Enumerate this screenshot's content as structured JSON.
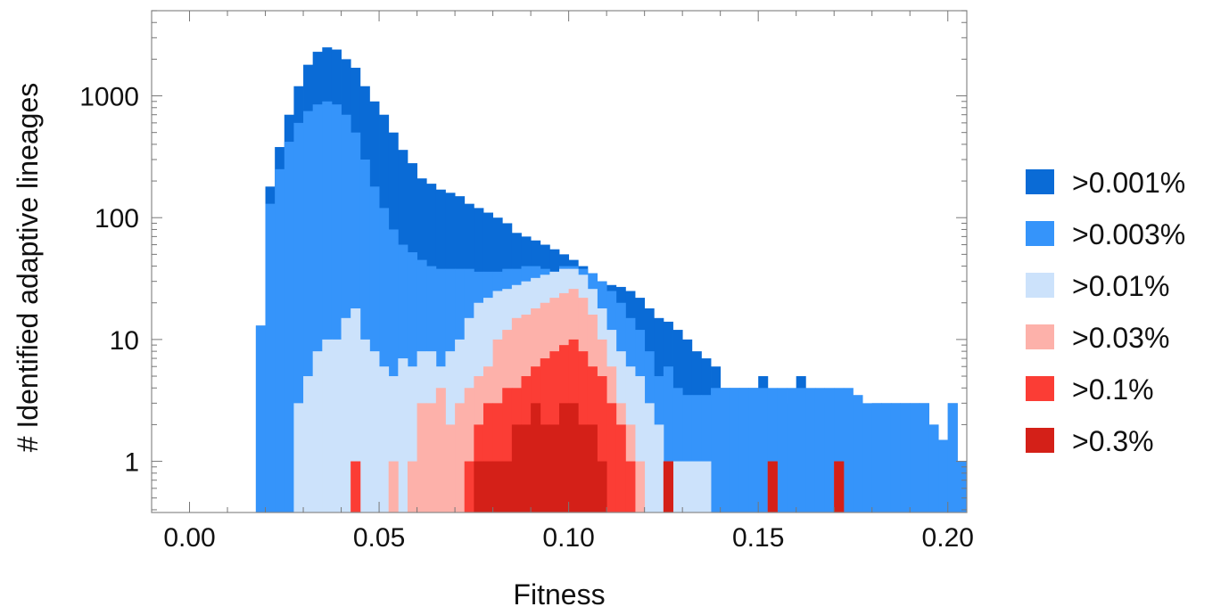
{
  "chart_data": {
    "type": "bar",
    "title": "",
    "xlabel": "Fitness",
    "ylabel": "# Identified adaptive lineages",
    "x_scale": "linear",
    "y_scale": "log",
    "xlim": [
      -0.01,
      0.205
    ],
    "ylim": [
      0.38,
      5000
    ],
    "bin_width": 0.0025,
    "xticks": [
      0.0,
      0.05,
      0.1,
      0.15,
      0.2
    ],
    "xtick_labels": [
      "0.00",
      "0.05",
      "0.10",
      "0.15",
      "0.20"
    ],
    "yticks": [
      1,
      10,
      100,
      1000
    ],
    "ytick_labels": [
      "1",
      "10",
      "100",
      "1000"
    ],
    "grid": false,
    "legend_position": "right",
    "bin_starts": [
      0.0175,
      0.02,
      0.0225,
      0.025,
      0.0275,
      0.03,
      0.0325,
      0.035,
      0.0375,
      0.04,
      0.0425,
      0.045,
      0.0475,
      0.05,
      0.0525,
      0.055,
      0.0575,
      0.06,
      0.0625,
      0.065,
      0.0675,
      0.07,
      0.0725,
      0.075,
      0.0775,
      0.08,
      0.0825,
      0.085,
      0.0875,
      0.09,
      0.0925,
      0.095,
      0.0975,
      0.1,
      0.1025,
      0.105,
      0.1075,
      0.11,
      0.1125,
      0.115,
      0.1175,
      0.12,
      0.1225,
      0.125,
      0.1275,
      0.13,
      0.1325,
      0.135,
      0.1375,
      0.14,
      0.1425,
      0.145,
      0.1475,
      0.15,
      0.1525,
      0.155,
      0.1575,
      0.16,
      0.1625,
      0.165,
      0.1675,
      0.17,
      0.1725,
      0.175,
      0.1775,
      0.18,
      0.1825,
      0.185,
      0.1875,
      0.19,
      0.1925,
      0.195,
      0.1975,
      0.2,
      0.2025
    ],
    "series": [
      {
        "name": ">0.001%",
        "color": "#0a6bd6",
        "values": [
          13,
          180,
          380,
          700,
          1200,
          1800,
          2300,
          2500,
          2400,
          2000,
          1700,
          1200,
          900,
          700,
          500,
          360,
          280,
          210,
          190,
          170,
          160,
          150,
          130,
          120,
          110,
          100,
          90,
          75,
          70,
          65,
          60,
          55,
          50,
          45,
          40,
          35,
          30,
          28,
          27,
          25,
          22,
          18,
          15,
          14,
          12,
          10,
          8,
          7,
          6,
          4,
          4,
          4,
          4,
          5,
          3,
          3,
          3,
          5,
          3,
          3,
          3,
          3,
          3,
          2,
          1.2,
          3,
          3,
          3,
          3,
          3,
          3,
          2,
          1.5,
          3,
          1
        ]
      },
      {
        "name": ">0.003%",
        "color": "#3594fa",
        "values": [
          13,
          130,
          250,
          420,
          600,
          750,
          850,
          900,
          850,
          700,
          500,
          300,
          180,
          120,
          80,
          60,
          52,
          45,
          40,
          38,
          38,
          38,
          38,
          36,
          36,
          36,
          38,
          38,
          40,
          40,
          38,
          36,
          40,
          40,
          38,
          35,
          30,
          25,
          20,
          15,
          12,
          8,
          5,
          6,
          4,
          3.5,
          3.5,
          3.5,
          4,
          4,
          4,
          4,
          4,
          4,
          4,
          4,
          4,
          4,
          4,
          4,
          4,
          4,
          4,
          3.5,
          3,
          3,
          3,
          3,
          3,
          3,
          3,
          2,
          1.5,
          3,
          1
        ]
      },
      {
        "name": ">0.01%",
        "color": "#cce2fb",
        "values": [
          0,
          0,
          0,
          0,
          3,
          5,
          8,
          10,
          10,
          15,
          18,
          10,
          8,
          6,
          5,
          7,
          6,
          8,
          8,
          6,
          8,
          10,
          15,
          20,
          22,
          25,
          26,
          28,
          30,
          32,
          34,
          36,
          38,
          38,
          34,
          26,
          18,
          12,
          8,
          6,
          5,
          3,
          2,
          1,
          1,
          1,
          1,
          1,
          0,
          0,
          0,
          0,
          0,
          0,
          0,
          0,
          0,
          0,
          0,
          0,
          0,
          0,
          0,
          0,
          0,
          0,
          0,
          0,
          0,
          0,
          0,
          0,
          0,
          0,
          0
        ]
      },
      {
        "name": ">0.03%",
        "color": "#fdb1aa",
        "values": [
          0,
          0,
          0,
          0,
          0,
          0,
          0,
          0,
          0,
          0,
          1,
          0,
          0,
          0,
          1,
          0,
          1,
          3,
          3,
          4,
          2,
          3,
          4,
          5,
          6,
          10,
          12,
          15,
          16,
          18,
          20,
          22,
          24,
          26,
          22,
          16,
          10,
          6,
          3,
          2,
          1,
          0,
          0,
          1,
          0,
          0,
          0,
          0,
          0,
          0,
          0,
          0,
          0,
          0,
          0,
          0,
          0,
          0,
          0,
          0,
          0,
          0,
          0,
          0,
          0,
          0,
          0,
          0,
          0,
          0,
          0,
          0,
          0,
          0,
          0
        ]
      },
      {
        "name": ">0.1%",
        "color": "#fb3d35",
        "values": [
          0,
          0,
          0,
          0,
          0,
          0,
          0,
          0,
          0,
          0,
          1,
          0,
          0,
          0,
          0,
          0,
          0,
          0,
          0,
          0,
          0,
          0,
          1,
          2,
          3,
          3,
          4,
          4,
          5,
          6,
          7,
          8,
          9,
          10,
          8,
          6,
          5,
          3,
          2,
          1,
          0,
          0,
          0,
          1,
          0,
          0,
          0,
          0,
          0,
          0,
          0,
          0,
          0,
          0,
          1,
          0,
          0,
          0,
          0,
          0,
          0,
          1,
          0,
          0,
          0,
          0,
          0,
          0,
          0,
          0,
          0,
          0,
          0,
          0,
          0
        ]
      },
      {
        "name": ">0.3%",
        "color": "#d42018",
        "values": [
          0,
          0,
          0,
          0,
          0,
          0,
          0,
          0,
          0,
          0,
          0,
          0,
          0,
          0,
          0,
          0,
          0,
          0,
          0,
          0,
          0,
          0,
          0,
          1,
          1,
          1,
          1,
          2,
          2,
          3,
          2,
          2,
          3,
          3,
          2,
          2,
          1,
          0,
          0,
          0,
          0,
          0,
          0,
          1,
          0,
          0,
          0,
          0,
          0,
          0,
          0,
          0,
          0,
          0,
          1,
          0,
          0,
          0,
          0,
          0,
          0,
          1,
          0,
          0,
          0,
          0,
          0,
          0,
          0,
          0,
          0,
          0,
          0,
          0,
          0
        ]
      }
    ]
  }
}
